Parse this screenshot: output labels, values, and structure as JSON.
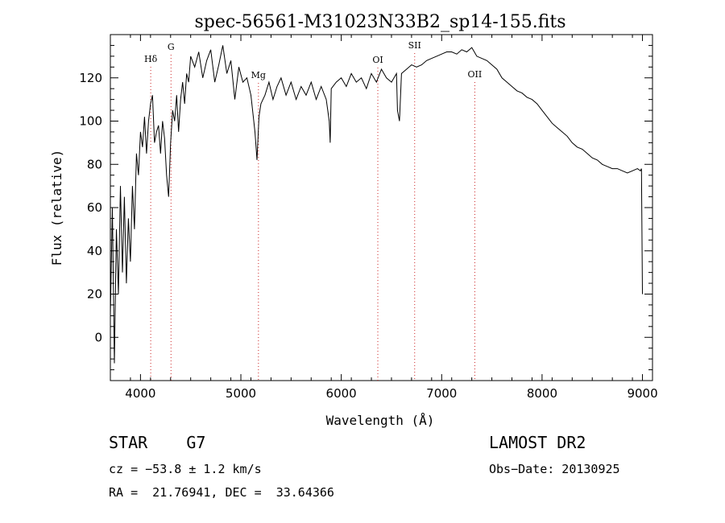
{
  "chart_data": {
    "type": "line",
    "title": "spec-56561-M31023N33B2_sp14-155.fits",
    "xlabel": "Wavelength (Å)",
    "ylabel": "Flux (relative)",
    "xlim": [
      3700,
      9100
    ],
    "ylim": [
      -20,
      140
    ],
    "xticks": [
      4000,
      5000,
      6000,
      7000,
      8000,
      9000
    ],
    "yticks": [
      0,
      20,
      40,
      60,
      80,
      100,
      120
    ],
    "grid": false,
    "series": [
      {
        "color": "#000000",
        "x": [
          3700,
          3720,
          3740,
          3760,
          3780,
          3800,
          3820,
          3840,
          3860,
          3880,
          3900,
          3920,
          3940,
          3960,
          3980,
          4000,
          4020,
          4040,
          4060,
          4080,
          4100,
          4120,
          4140,
          4160,
          4180,
          4200,
          4220,
          4240,
          4260,
          4280,
          4300,
          4320,
          4340,
          4360,
          4380,
          4400,
          4420,
          4440,
          4460,
          4480,
          4500,
          4540,
          4580,
          4620,
          4660,
          4700,
          4740,
          4780,
          4820,
          4860,
          4900,
          4940,
          4980,
          5020,
          5060,
          5100,
          5140,
          5160,
          5180,
          5200,
          5240,
          5280,
          5320,
          5360,
          5400,
          5450,
          5500,
          5550,
          5600,
          5650,
          5700,
          5750,
          5800,
          5850,
          5880,
          5890,
          5900,
          5950,
          6000,
          6050,
          6100,
          6150,
          6200,
          6250,
          6300,
          6350,
          6400,
          6450,
          6500,
          6550,
          6560,
          6580,
          6600,
          6650,
          6700,
          6750,
          6800,
          6850,
          6900,
          6950,
          7000,
          7050,
          7100,
          7150,
          7200,
          7250,
          7300,
          7350,
          7400,
          7450,
          7500,
          7550,
          7600,
          7650,
          7700,
          7750,
          7800,
          7850,
          7900,
          7950,
          8000,
          8050,
          8100,
          8150,
          8200,
          8250,
          8300,
          8350,
          8400,
          8450,
          8500,
          8550,
          8600,
          8650,
          8700,
          8750,
          8800,
          8850,
          8900,
          8950,
          8980,
          8990,
          9000
        ],
        "y": [
          10,
          60,
          -12,
          50,
          20,
          70,
          30,
          65,
          25,
          55,
          35,
          70,
          50,
          85,
          75,
          95,
          88,
          102,
          85,
          100,
          108,
          112,
          90,
          95,
          98,
          85,
          100,
          92,
          75,
          65,
          90,
          105,
          100,
          112,
          95,
          110,
          118,
          108,
          122,
          118,
          130,
          125,
          132,
          120,
          128,
          133,
          118,
          126,
          135,
          122,
          128,
          110,
          125,
          118,
          120,
          112,
          95,
          82,
          102,
          108,
          112,
          118,
          110,
          116,
          120,
          112,
          118,
          110,
          116,
          112,
          118,
          110,
          116,
          110,
          100,
          90,
          115,
          118,
          120,
          116,
          122,
          118,
          120,
          115,
          122,
          118,
          124,
          120,
          118,
          122,
          105,
          100,
          122,
          124,
          126,
          125,
          126,
          128,
          129,
          130,
          131,
          132,
          132,
          131,
          133,
          132,
          134,
          130,
          129,
          128,
          126,
          124,
          120,
          118,
          116,
          114,
          113,
          111,
          110,
          108,
          105,
          102,
          99,
          97,
          95,
          93,
          90,
          88,
          87,
          85,
          83,
          82,
          80,
          79,
          78,
          78,
          77,
          76,
          77,
          78,
          77,
          78,
          20
        ]
      }
    ],
    "line_markers": [
      {
        "label": "Hδ",
        "x": 4102
      },
      {
        "label": "G",
        "x": 4304
      },
      {
        "label": "Mg",
        "x": 5175
      },
      {
        "label": "OI",
        "x": 6364
      },
      {
        "label": "SII",
        "x": 6731
      },
      {
        "label": "OII",
        "x": 7330
      }
    ]
  },
  "info": {
    "classification": "STAR    G7",
    "cz": "cz = −53.8 ± 1.2 km/s",
    "radec": "RA =  21.76941, DEC =  33.64366",
    "survey": "LAMOST DR2",
    "obs_date": "Obs−Date: 20130925"
  }
}
